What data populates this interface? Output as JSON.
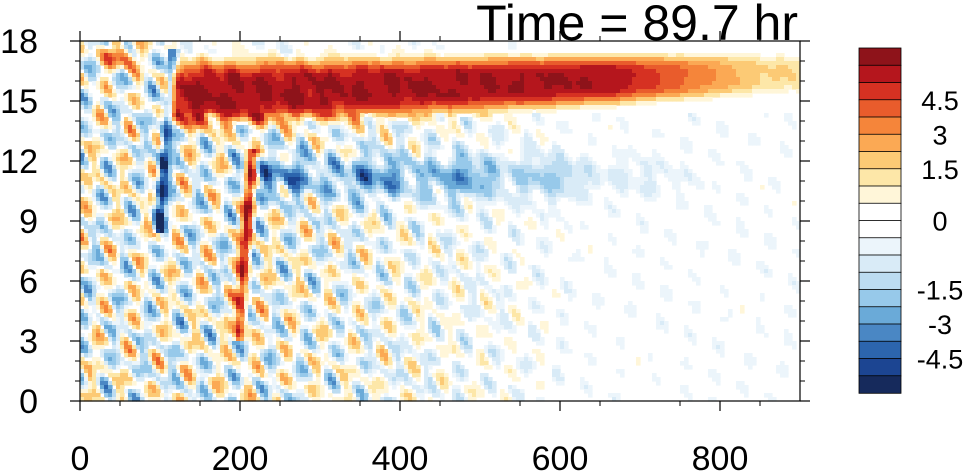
{
  "chart_data": {
    "type": "heatmap",
    "title": "Time = 89.7 hr",
    "xlabel": "",
    "ylabel": "",
    "xlim": [
      0,
      900
    ],
    "ylim": [
      0,
      18
    ],
    "x_ticks": [
      0,
      200,
      400,
      600,
      800
    ],
    "x_tick_labels": [
      "0",
      "200",
      "400",
      "600",
      "800"
    ],
    "y_ticks": [
      0,
      3,
      6,
      9,
      12,
      15,
      18
    ],
    "y_tick_labels": [
      "0",
      "3",
      "6",
      "9",
      "12",
      "15",
      "18"
    ],
    "colorbar": {
      "levels": [
        -6,
        -5.25,
        -4.5,
        -3.75,
        -3,
        -2.25,
        -1.5,
        -1.0,
        -0.5,
        -0.25,
        0.25,
        0.5,
        1.0,
        1.5,
        2.25,
        3,
        3.75,
        4.5,
        5.25,
        6
      ],
      "labels": [
        "4.5",
        "3",
        "1.5",
        "0",
        "-1.5",
        "-3",
        "-4.5"
      ],
      "label_values": [
        4.5,
        3,
        1.5,
        0,
        -1.5,
        -3,
        -4.5
      ],
      "colors": [
        "#162a5c",
        "#1c4592",
        "#2c65ae",
        "#4a87c4",
        "#6aaad8",
        "#97c9ea",
        "#bcdcf1",
        "#d9ebf7",
        "#ecf5fb",
        "#ffffff",
        "#ffffff",
        "#fff6d9",
        "#fde7a8",
        "#fcca75",
        "#fba954",
        "#f5853a",
        "#e95c2c",
        "#d63122",
        "#b5161d",
        "#8e131a"
      ]
    },
    "features": [
      {
        "type": "band",
        "x": [
          110,
          900
        ],
        "y_center_start": 15.3,
        "y_center_end": 16.4,
        "value": 6,
        "width": 1.6
      },
      {
        "type": "band",
        "x": [
          200,
          700
        ],
        "y_center": 11.2,
        "value": -3.2,
        "width": 1.0
      },
      {
        "type": "streak",
        "from": [
          100,
          9.5
        ],
        "to": [
          115,
          17.0
        ],
        "value": -5.0
      },
      {
        "type": "streak",
        "from": [
          200,
          4.0
        ],
        "to": [
          215,
          12.0
        ],
        "value": 5.0
      }
    ]
  }
}
